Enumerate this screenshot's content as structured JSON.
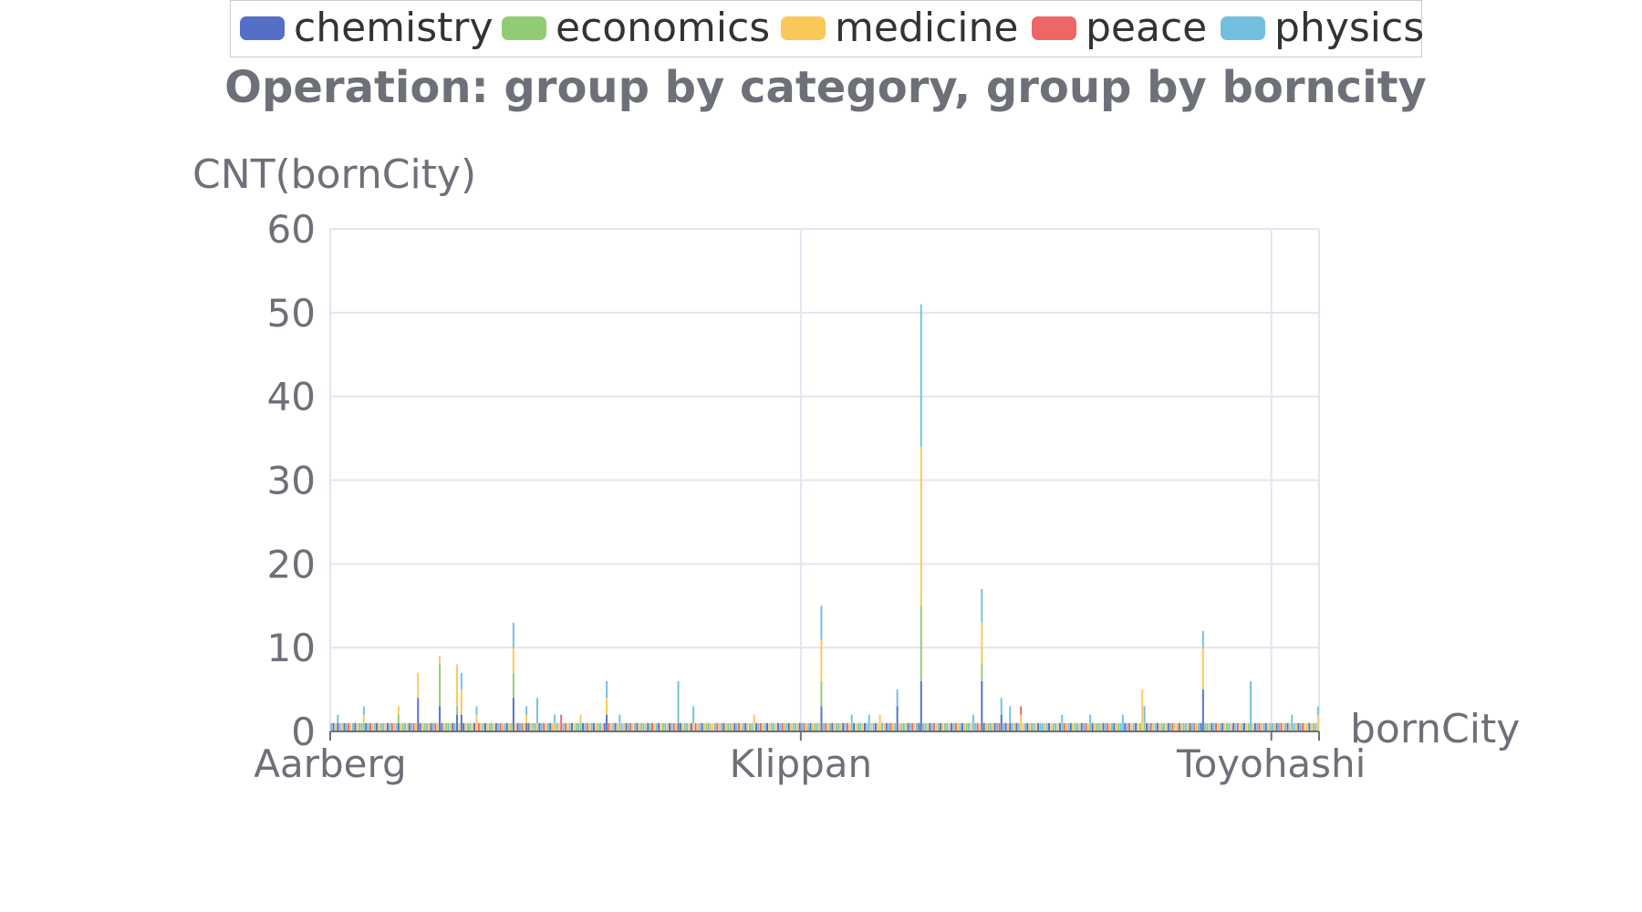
{
  "chart_data": {
    "type": "bar",
    "stacked": true,
    "title": "Operation: group by category, group by borncity",
    "xlabel": "bornCity",
    "ylabel": "CNT(bornCity)",
    "ylim": [
      0,
      60
    ],
    "yticks": [
      0,
      10,
      20,
      30,
      40,
      50,
      60
    ],
    "x_tick_labels": [
      "Aarberg",
      "Klippan",
      "Toyohashi"
    ],
    "grid": true,
    "legend_position": "top",
    "legend": [
      "chemistry",
      "economics",
      "medicine",
      "peace",
      "physics"
    ],
    "colors": {
      "chemistry": "#5470c6",
      "economics": "#91cc75",
      "medicine": "#fac858",
      "peace": "#ee6666",
      "physics": "#73c0de"
    },
    "category_count": 456,
    "default_series": "physics",
    "peaks": [
      {
        "index": 3,
        "chemistry": 1,
        "physics": 1
      },
      {
        "index": 15,
        "economics": 1,
        "medicine": 1,
        "physics": 1
      },
      {
        "index": 31,
        "chemistry": 1,
        "economics": 1,
        "medicine": 1
      },
      {
        "index": 40,
        "chemistry": 4,
        "medicine": 3
      },
      {
        "index": 50,
        "chemistry": 3,
        "economics": 5,
        "medicine": 1
      },
      {
        "index": 58,
        "chemistry": 2,
        "economics": 1,
        "medicine": 5
      },
      {
        "index": 60,
        "chemistry": 2,
        "medicine": 3,
        "physics": 2
      },
      {
        "index": 67,
        "medicine": 2,
        "physics": 1
      },
      {
        "index": 84,
        "chemistry": 4,
        "economics": 3,
        "medicine": 3,
        "physics": 3
      },
      {
        "index": 90,
        "chemistry": 1,
        "medicine": 1,
        "physics": 1
      },
      {
        "index": 95,
        "medicine": 1,
        "physics": 3
      },
      {
        "index": 103,
        "medicine": 1,
        "physics": 1
      },
      {
        "index": 106,
        "peace": 2
      },
      {
        "index": 115,
        "economics": 1,
        "medicine": 1
      },
      {
        "index": 127,
        "chemistry": 2,
        "medicine": 2,
        "physics": 2
      },
      {
        "index": 133,
        "economics": 1,
        "physics": 1
      },
      {
        "index": 160,
        "chemistry": 1,
        "physics": 5
      },
      {
        "index": 167,
        "medicine": 1,
        "physics": 2
      },
      {
        "index": 176,
        "medicine": 1
      },
      {
        "index": 195,
        "medicine": 2
      },
      {
        "index": 226,
        "chemistry": 3,
        "economics": 3,
        "medicine": 5,
        "physics": 4
      },
      {
        "index": 240,
        "physics": 2
      },
      {
        "index": 248,
        "physics": 2
      },
      {
        "index": 253,
        "medicine": 2
      },
      {
        "index": 261,
        "chemistry": 3,
        "physics": 2
      },
      {
        "index": 272,
        "chemistry": 6,
        "economics": 9,
        "medicine": 19,
        "physics": 17
      },
      {
        "index": 296,
        "physics": 2
      },
      {
        "index": 300,
        "chemistry": 6,
        "economics": 2,
        "medicine": 5,
        "physics": 4
      },
      {
        "index": 309,
        "chemistry": 2,
        "physics": 2
      },
      {
        "index": 313,
        "chemistry": 1,
        "physics": 2
      },
      {
        "index": 318,
        "medicine": 2,
        "peace": 1
      },
      {
        "index": 328,
        "physics": 1
      },
      {
        "index": 337,
        "physics": 2
      },
      {
        "index": 350,
        "physics": 2
      },
      {
        "index": 365,
        "physics": 2
      },
      {
        "index": 375,
        "economics": 1,
        "physics": 2
      },
      {
        "index": 374,
        "medicine": 5
      },
      {
        "index": 390,
        "medicine": 1
      },
      {
        "index": 402,
        "chemistry": 5,
        "medicine": 5,
        "physics": 2
      },
      {
        "index": 424,
        "physics": 6
      },
      {
        "index": 433,
        "physics": 1
      },
      {
        "index": 443,
        "physics": 2
      },
      {
        "index": 450,
        "medicine": 1
      },
      {
        "index": 455,
        "medicine": 2,
        "physics": 1
      }
    ]
  }
}
